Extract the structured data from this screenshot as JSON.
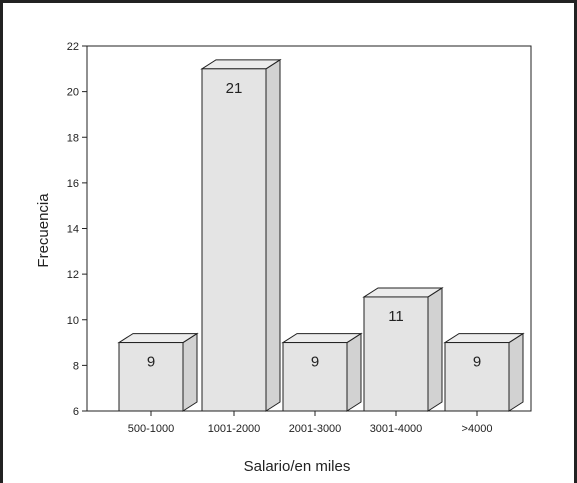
{
  "chart_data": {
    "type": "bar",
    "title": "",
    "xlabel": "Salario/en miles",
    "ylabel": "Frecuencia",
    "categories": [
      "500-1000",
      "1001-2000",
      "2001-3000",
      "3001-4000",
      ">4000"
    ],
    "values": [
      9,
      21,
      9,
      11,
      9
    ],
    "data_labels": [
      "9",
      "21",
      "9",
      "11",
      "9"
    ],
    "ylim": [
      6,
      22
    ],
    "yticks": [
      6,
      8,
      10,
      12,
      14,
      16,
      18,
      20,
      22
    ],
    "style": "3d",
    "grid": false,
    "legend": "none",
    "colors": {
      "bar_front": "#e4e4e4",
      "bar_side": "#d2d2d2",
      "bar_top": "#ececec",
      "stroke": "#222222"
    }
  }
}
